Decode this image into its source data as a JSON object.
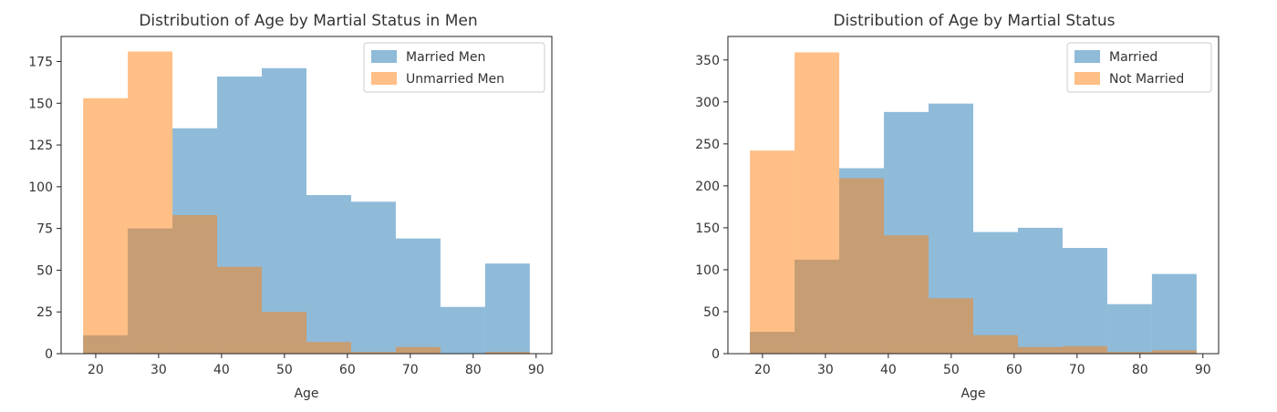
{
  "chart_data": [
    {
      "type": "bar",
      "title": "Distribution of Age by Martial Status in Men",
      "xlabel": "Age",
      "ylabel": "",
      "xlim": [
        14.5,
        92.5
      ],
      "ylim": [
        0,
        190
      ],
      "xticks": [
        20,
        30,
        40,
        50,
        60,
        70,
        80,
        90
      ],
      "yticks": [
        0,
        25,
        50,
        75,
        100,
        125,
        150,
        175
      ],
      "bin_edges": [
        18,
        25.1,
        32.2,
        39.3,
        46.4,
        53.5,
        60.6,
        67.7,
        74.8,
        81.9,
        89
      ],
      "legend_position": "top-right",
      "series": [
        {
          "name": "Married Men",
          "color": "#1f77b4",
          "values": [
            11,
            75,
            135,
            166,
            171,
            95,
            91,
            69,
            28,
            54
          ]
        },
        {
          "name": " Unmarried Men",
          "color": "#ff7f0e",
          "values": [
            153,
            181,
            83,
            52,
            25,
            7,
            1,
            4,
            0,
            1
          ]
        }
      ]
    },
    {
      "type": "bar",
      "title": "Distribution of Age by Martial Status",
      "xlabel": "Age",
      "ylabel": "",
      "xlim": [
        14.5,
        92.5
      ],
      "ylim": [
        0,
        378
      ],
      "xticks": [
        20,
        30,
        40,
        50,
        60,
        70,
        80,
        90
      ],
      "yticks": [
        0,
        50,
        100,
        150,
        200,
        250,
        300,
        350
      ],
      "bin_edges": [
        18,
        25.1,
        32.2,
        39.3,
        46.4,
        53.5,
        60.6,
        67.7,
        74.8,
        81.9,
        89
      ],
      "legend_position": "top-right",
      "series": [
        {
          "name": "Married",
          "color": "#1f77b4",
          "values": [
            26,
            112,
            221,
            288,
            298,
            145,
            150,
            126,
            59,
            95
          ]
        },
        {
          "name": "Not Married",
          "color": "#ff7f0e",
          "values": [
            242,
            359,
            209,
            141,
            66,
            22,
            8,
            9,
            2,
            4
          ]
        }
      ]
    }
  ]
}
